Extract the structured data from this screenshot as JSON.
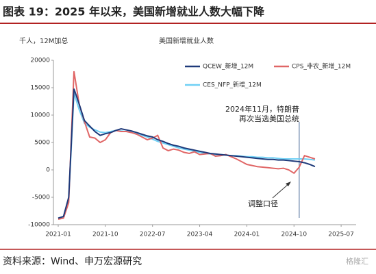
{
  "chart_data": {
    "type": "line",
    "title": "图表 19：2025 年以来，美国新增就业人数大幅下降",
    "subtitle": "美国新增就业人数",
    "y_label": "千人，12M加总",
    "source": "资料来源：Wind、申万宏源研究",
    "watermark": "格隆汇",
    "x": [
      "2021-01",
      "2021-02",
      "2021-03",
      "2021-04",
      "2021-05",
      "2021-06",
      "2021-07",
      "2021-08",
      "2021-09",
      "2021-10",
      "2021-11",
      "2021-12",
      "2022-01",
      "2022-02",
      "2022-03",
      "2022-04",
      "2022-05",
      "2022-06",
      "2022-07",
      "2022-08",
      "2022-09",
      "2022-10",
      "2022-11",
      "2022-12",
      "2023-01",
      "2023-02",
      "2023-03",
      "2023-04",
      "2023-05",
      "2023-06",
      "2023-07",
      "2023-08",
      "2023-09",
      "2023-10",
      "2023-11",
      "2023-12",
      "2024-01",
      "2024-02",
      "2024-03",
      "2024-04",
      "2024-05",
      "2024-06",
      "2024-07",
      "2024-08",
      "2024-09",
      "2024-10",
      "2024-11",
      "2024-12",
      "2025-01",
      "2025-02"
    ],
    "series": [
      {
        "name": "CES_NFP_新增_12M",
        "color": "#6fd0f5",
        "values": [
          -8800,
          -8600,
          -5500,
          14000,
          11000,
          8500,
          7800,
          7300,
          6900,
          6800,
          7000,
          7200,
          7100,
          7000,
          6900,
          6600,
          6300,
          6000,
          5600,
          5200,
          4900,
          4600,
          4300,
          4000,
          3800,
          3600,
          3400,
          3200,
          3000,
          2900,
          2800,
          2800,
          2700,
          2600,
          2600,
          2500,
          2400,
          2400,
          2300,
          2300,
          2200,
          2200,
          2100,
          2000,
          2000,
          2000,
          2000,
          2000,
          1900,
          1800
        ]
      },
      {
        "name": "CPS_非农_新增_12M",
        "color": "#e06666",
        "values": [
          -9000,
          -8800,
          -6000,
          18000,
          12000,
          8800,
          6000,
          5800,
          5000,
          5500,
          6800,
          7200,
          7000,
          7000,
          6800,
          6500,
          6000,
          5500,
          5800,
          6300,
          4000,
          3500,
          3800,
          3600,
          3200,
          3000,
          3300,
          2800,
          2900,
          3000,
          2500,
          2600,
          2800,
          2400,
          2000,
          1500,
          1000,
          800,
          600,
          500,
          400,
          300,
          200,
          300,
          0,
          -600,
          500,
          2600,
          2300,
          2000
        ]
      },
      {
        "name": "QCEW_新增_12M",
        "color": "#1f3a7a",
        "values": [
          -8800,
          -8500,
          -5000,
          14800,
          12000,
          9000,
          8000,
          7000,
          6300,
          6600,
          6800,
          7200,
          7500,
          7300,
          7100,
          6800,
          6500,
          6200,
          6000,
          5500,
          5200,
          4800,
          4500,
          4300,
          4000,
          3800,
          3600,
          3400,
          3200,
          3000,
          2900,
          2800,
          2700,
          2600,
          2500,
          2400,
          2300,
          2200,
          2100,
          2000,
          1900,
          1900,
          1800,
          1800,
          1700,
          1600,
          1500,
          1300,
          1000,
          600
        ]
      }
    ],
    "ylim": [
      -10000,
      20000
    ],
    "yticks": [
      -10000,
      -5000,
      0,
      5000,
      10000,
      15000,
      20000
    ],
    "xticks": [
      "2021-01",
      "2021-10",
      "2022-07",
      "2023-04",
      "2024-01",
      "2024-10",
      "2025-07"
    ],
    "annotations": [
      {
        "lines": [
          "2024年11月，特朗普",
          "再次当选美国总统"
        ],
        "x": "2024-11"
      },
      {
        "lines": [
          "调整口径"
        ]
      }
    ]
  }
}
